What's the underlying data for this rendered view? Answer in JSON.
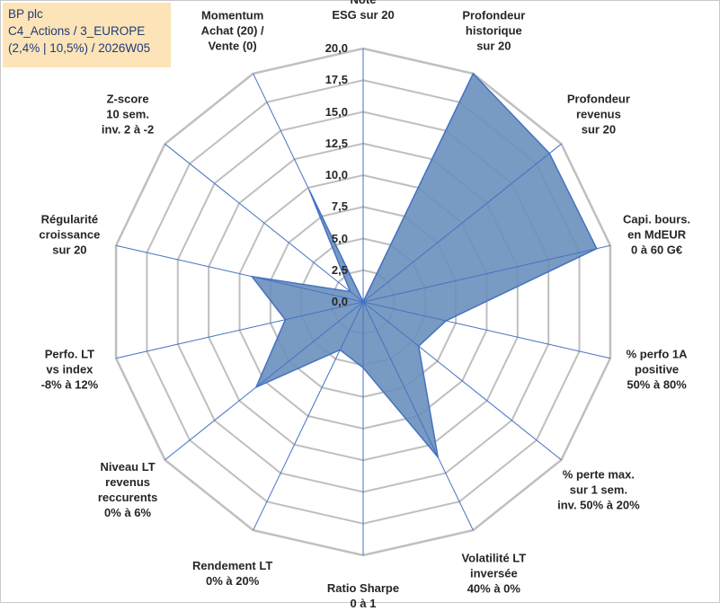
{
  "info_box": {
    "line1": "BP plc",
    "line2": "C4_Actions / 3_EUROPE",
    "line3": "(2,4% | 10,5%) / 2026W05"
  },
  "chart_data": {
    "type": "radar",
    "series": [
      {
        "values": [
          0,
          20,
          18.8,
          18.9,
          6.7,
          5.6,
          13.6,
          5.2,
          4.2,
          10.8,
          6.3,
          9.0,
          1.3,
          9.8
        ]
      }
    ],
    "categories": [
      "Note\nESG sur 20",
      "Profondeur\nhistorique\nsur 20",
      "Profondeur\nrevenus\nsur 20",
      "Capi. bours.\nen MdEUR\n0 à 60 G€",
      "% perfo 1A\npositive\n50% à 80%",
      "% perte max.\nsur 1 sem.\ninv. 50% à 20%",
      "Volatilité LT\ninversée\n40% à 0%",
      "Ratio Sharpe\n0 à 1",
      "Rendement LT\n0% à 20%",
      "Niveau LT\nrevenus\nreccurents\n0% à 6%",
      "Perfo. LT\nvs index\n-8% à 12%",
      "Régularité\ncroissance\nsur 20",
      "Z-score\n10 sem.\ninv. 2 à -2",
      "Momentum\nAchat (20) /\nVente (0)"
    ],
    "r_range": [
      0,
      20
    ],
    "tick_labels": [
      "0,0",
      "2,5",
      "5,0",
      "7,5",
      "10,0",
      "12,5",
      "15,0",
      "17,5",
      "20,0"
    ],
    "grid": true,
    "colors": {
      "fill": "#6a8fbb",
      "fill_opacity": 0.9,
      "stroke": "#4472c4",
      "grid": "#bfbfbf",
      "spoke": "#4472c4"
    }
  }
}
